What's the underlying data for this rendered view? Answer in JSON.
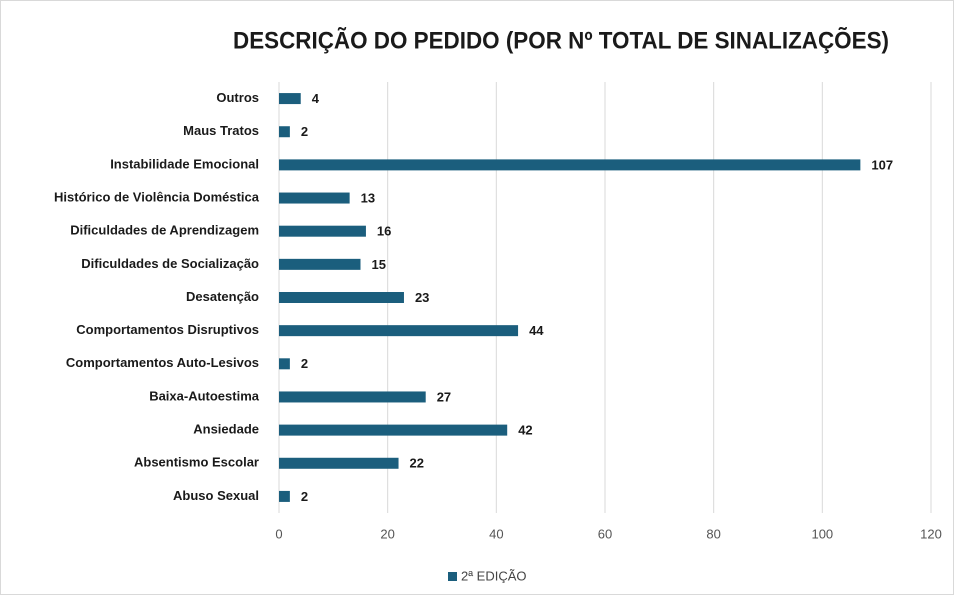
{
  "chart_data": {
    "type": "bar",
    "orientation": "horizontal",
    "title": "DESCRIÇÃO DO PEDIDO (POR Nº TOTAL DE SINALIZAÇÕES)",
    "categories": [
      "Outros",
      "Maus Tratos",
      "Instabilidade Emocional",
      "Histórico de Violência Doméstica",
      "Dificuldades de Aprendizagem",
      "Dificuldades de Socialização",
      "Desatenção",
      "Comportamentos Disruptivos",
      "Comportamentos Auto-Lesivos",
      "Baixa-Autoestima",
      "Ansiedade",
      "Absentismo Escolar",
      "Abuso Sexual"
    ],
    "series": [
      {
        "name": "2ª EDIÇÃO",
        "color": "#1b5e7d",
        "values": [
          4,
          2,
          107,
          13,
          16,
          15,
          23,
          44,
          2,
          27,
          42,
          22,
          2
        ]
      }
    ],
    "xlim": [
      0,
      120
    ],
    "xticks": [
      0,
      20,
      40,
      60,
      80,
      100,
      120
    ],
    "grid": true,
    "legend": "bottom"
  }
}
